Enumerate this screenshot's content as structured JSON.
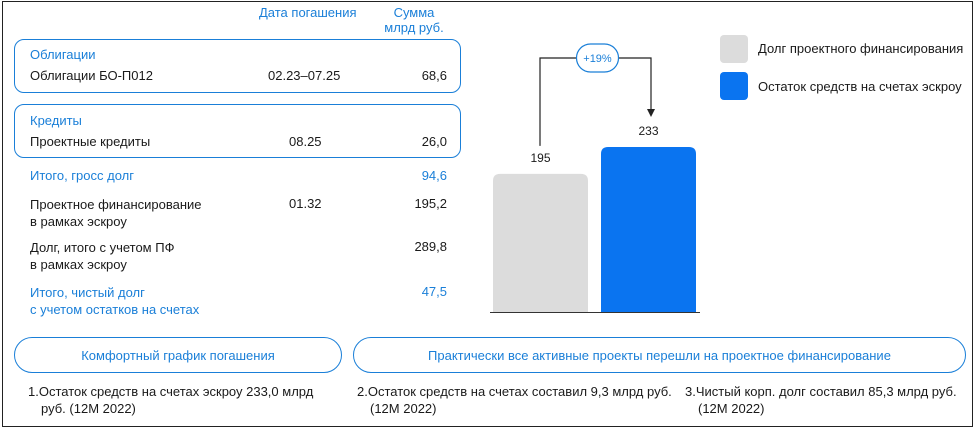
{
  "table": {
    "col_date": "Дата погашения",
    "col_sum_line1": "Сумма",
    "col_sum_line2": "млрд руб.",
    "bonds": {
      "section": "Облигации",
      "name": "Облигации БО-П012",
      "date": "02.23–07.25",
      "value": "68,6"
    },
    "loans": {
      "section": "Кредиты",
      "name": "Проектные кредиты",
      "date": "08.25",
      "value": "26,0"
    },
    "gross": {
      "label": "Итого, гросс долг",
      "value": "94,6"
    },
    "pf": {
      "label_line1": "Проектное финансирование",
      "label_line2": "в рамках эскроу",
      "date": "01.32",
      "value": "195,2"
    },
    "total_pf": {
      "label_line1": "Долг, итого с учетом ПФ",
      "label_line2": "в рамках эскроу",
      "value": "289,8"
    },
    "net": {
      "label_line1": "Итого, чистый долг",
      "label_line2": "с учетом остатков на счетах",
      "value": "47,5"
    }
  },
  "pills": {
    "left": "Комфортный график погашения",
    "right": "Практически все активные проекты перешли на проектное финансирование"
  },
  "footnotes": [
    {
      "num": "1.",
      "line1": "Остаток средств на счетах эскроу 233,0 млрд",
      "line2": "руб. (12М 2022)"
    },
    {
      "num": "2.",
      "line1": "Остаток средств на счетах составил 9,3 млрд руб.",
      "line2": "(12М 2022)"
    },
    {
      "num": "3.",
      "line1": "Чистый корп. долг составил 85,3 млрд руб.",
      "line2": "(12М 2022)"
    }
  ],
  "chart_data": {
    "type": "bar",
    "categories": [
      "Долг проектного финансирования",
      "Остаток средств на счетах эскроу"
    ],
    "values": [
      195,
      233
    ],
    "value_labels": [
      "195",
      "233"
    ],
    "colors": [
      "#dcdcdc",
      "#0a74f0"
    ],
    "growth_label": "+19%",
    "legend": [
      {
        "name": "Долг проектного финансирования",
        "color": "#dcdcdc"
      },
      {
        "name": "Остаток средств на счетах эскроу",
        "color": "#0a74f0"
      }
    ],
    "legend_position": "top-right",
    "ylim": [
      0,
      260
    ],
    "grid": false
  }
}
